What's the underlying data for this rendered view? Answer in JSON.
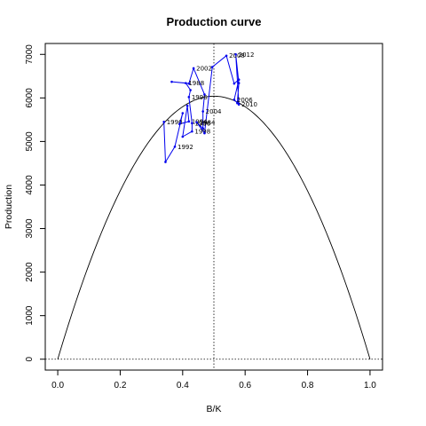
{
  "chart_data": {
    "type": "line",
    "title": "Production curve",
    "xlabel": "B/K",
    "ylabel": "Production",
    "xlim": [
      -0.04,
      1.04
    ],
    "ylim": [
      -250,
      7250
    ],
    "xticks": [
      0.0,
      0.2,
      0.4,
      0.6,
      0.8,
      1.0
    ],
    "xtick_labels": [
      "0.0",
      "0.2",
      "0.4",
      "0.6",
      "0.8",
      "1.0"
    ],
    "yticks": [
      0,
      1000,
      2000,
      3000,
      4000,
      5000,
      6000,
      7000
    ],
    "ytick_labels": [
      "0",
      "1000",
      "2000",
      "3000",
      "4000",
      "5000",
      "6000",
      "7000"
    ],
    "grid": false,
    "reference_lines": [
      {
        "orientation": "vertical",
        "x": 0.5,
        "style": "dotted"
      },
      {
        "orientation": "horizontal",
        "y": 0,
        "style": "dotted"
      }
    ],
    "production_curve": {
      "type": "parabola",
      "max_value": 6040,
      "at": 0.5,
      "color": "#000000"
    },
    "series": [
      {
        "color": "#0000ee",
        "points": [
          {
            "x": 0.34,
            "y": 5450,
            "label": "1990"
          },
          {
            "x": 0.345,
            "y": 4530
          },
          {
            "x": 0.375,
            "y": 4880,
            "label": "1992"
          },
          {
            "x": 0.4,
            "y": 5650
          },
          {
            "x": 0.39,
            "y": 5400
          },
          {
            "x": 0.42,
            "y": 5460,
            "label": "1994"
          },
          {
            "x": 0.415,
            "y": 5820
          },
          {
            "x": 0.4,
            "y": 5110
          },
          {
            "x": 0.43,
            "y": 5230,
            "label": "1998"
          },
          {
            "x": 0.43,
            "y": 5420,
            "label": "1986"
          },
          {
            "x": 0.42,
            "y": 6020,
            "label": "1996"
          },
          {
            "x": 0.425,
            "y": 6180
          },
          {
            "x": 0.41,
            "y": 6340,
            "label": "1988"
          },
          {
            "x": 0.365,
            "y": 6370
          },
          {
            "x": 0.42,
            "y": 6330
          },
          {
            "x": 0.435,
            "y": 6680,
            "label": "2002"
          },
          {
            "x": 0.47,
            "y": 6080
          },
          {
            "x": 0.465,
            "y": 5690,
            "label": "2004"
          },
          {
            "x": 0.465,
            "y": 5300
          },
          {
            "x": 0.445,
            "y": 5440,
            "label": "1984"
          },
          {
            "x": 0.47,
            "y": 5190
          },
          {
            "x": 0.495,
            "y": 6710
          },
          {
            "x": 0.54,
            "y": 6970,
            "label": "2008"
          },
          {
            "x": 0.565,
            "y": 6330
          },
          {
            "x": 0.58,
            "y": 6420
          },
          {
            "x": 0.565,
            "y": 5960,
            "label": "2006"
          },
          {
            "x": 0.58,
            "y": 5850,
            "label": "2010"
          },
          {
            "x": 0.57,
            "y": 7000,
            "label": "2012"
          },
          {
            "x": 0.58,
            "y": 6340
          },
          {
            "x": 0.575,
            "y": 5880
          }
        ]
      }
    ]
  }
}
